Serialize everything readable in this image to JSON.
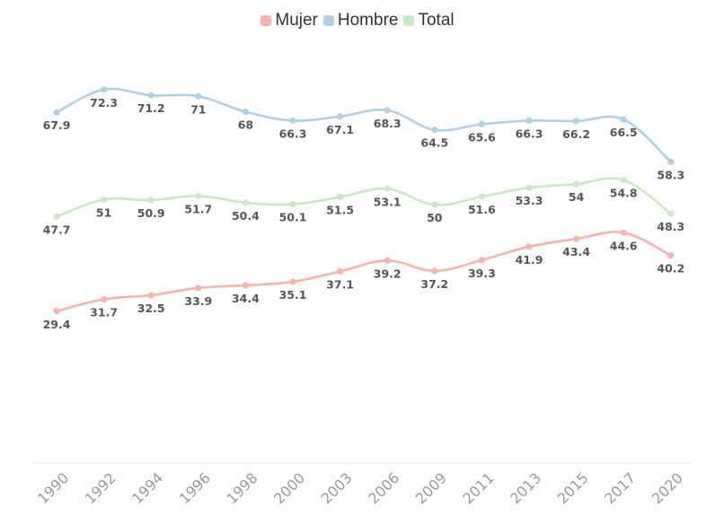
{
  "chart_data": {
    "type": "line",
    "title": "",
    "xlabel": "",
    "ylabel": "",
    "ylim": [
      0,
      80
    ],
    "grid": false,
    "legend_position": "top-center",
    "categories": [
      "1990",
      "1992",
      "1994",
      "1996",
      "1998",
      "2000",
      "2003",
      "2006",
      "2009",
      "2011",
      "2013",
      "2015",
      "2017",
      "2020"
    ],
    "series": [
      {
        "name": "Mujer",
        "color": "#f4b6ac",
        "values": [
          29.4,
          31.7,
          32.5,
          33.9,
          34.4,
          35.1,
          37.1,
          39.2,
          37.2,
          39.3,
          41.9,
          43.4,
          44.6,
          40.2
        ]
      },
      {
        "name": "Hombre",
        "color": "#b3cfe3",
        "values": [
          67.9,
          72.3,
          71.2,
          71,
          68,
          66.3,
          67.1,
          68.3,
          64.5,
          65.6,
          66.3,
          66.2,
          66.5,
          58.3
        ]
      },
      {
        "name": "Total",
        "color": "#c9e9c0",
        "values": [
          47.7,
          51,
          50.9,
          51.7,
          50.4,
          50.1,
          51.5,
          53.1,
          50,
          51.6,
          53.3,
          54,
          54.8,
          48.3
        ]
      }
    ]
  }
}
